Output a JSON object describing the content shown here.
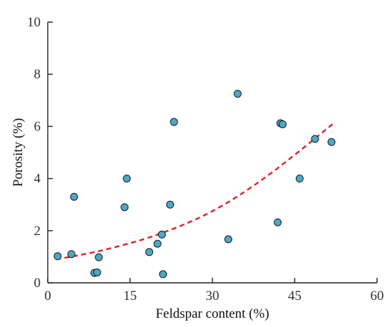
{
  "chart_data": {
    "type": "scatter",
    "xlabel": "Feldspar content (%)",
    "ylabel": "Porosity (%)",
    "xlim": [
      0,
      60
    ],
    "ylim": [
      0,
      10
    ],
    "xticks": [
      0,
      15,
      30,
      45,
      60
    ],
    "yticks": [
      0,
      2,
      4,
      6,
      8,
      10
    ],
    "grid": false,
    "series": [
      {
        "type": "scatter",
        "color": "#4aa8c8",
        "points": [
          {
            "x": 1.8,
            "y": 1.02
          },
          {
            "x": 4.3,
            "y": 1.1
          },
          {
            "x": 4.8,
            "y": 3.3
          },
          {
            "x": 8.5,
            "y": 0.38
          },
          {
            "x": 9.0,
            "y": 0.4
          },
          {
            "x": 9.3,
            "y": 0.98
          },
          {
            "x": 14.0,
            "y": 2.9
          },
          {
            "x": 14.4,
            "y": 4.0
          },
          {
            "x": 18.5,
            "y": 1.18
          },
          {
            "x": 20.0,
            "y": 1.5
          },
          {
            "x": 20.8,
            "y": 1.85
          },
          {
            "x": 21.0,
            "y": 0.33
          },
          {
            "x": 22.3,
            "y": 3.0
          },
          {
            "x": 23.0,
            "y": 6.17
          },
          {
            "x": 32.9,
            "y": 1.67
          },
          {
            "x": 34.6,
            "y": 7.25
          },
          {
            "x": 41.9,
            "y": 2.32
          },
          {
            "x": 42.4,
            "y": 6.12
          },
          {
            "x": 42.8,
            "y": 6.08
          },
          {
            "x": 45.9,
            "y": 4.0
          },
          {
            "x": 48.7,
            "y": 5.52
          },
          {
            "x": 51.7,
            "y": 5.4
          }
        ]
      },
      {
        "type": "trend-line",
        "style": "dashed",
        "color": "#dd2222",
        "curve": [
          {
            "x": 1.5,
            "y": 0.9
          },
          {
            "x": 10,
            "y": 1.25
          },
          {
            "x": 20,
            "y": 1.85
          },
          {
            "x": 30,
            "y": 2.75
          },
          {
            "x": 40,
            "y": 4.1
          },
          {
            "x": 52,
            "y": 6.1
          }
        ]
      }
    ]
  }
}
